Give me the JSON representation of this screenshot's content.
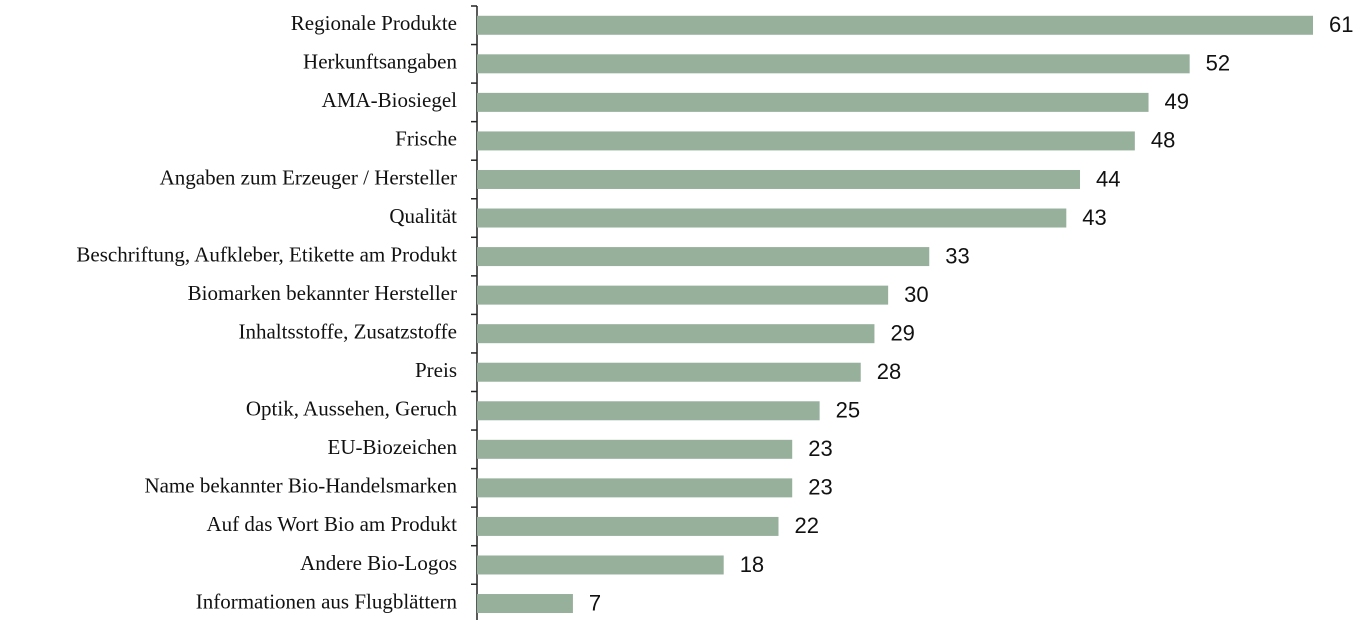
{
  "chart_data": {
    "type": "barh",
    "categories": [
      "Regionale Produkte",
      "Herkunftsangaben",
      "AMA-Biosiegel",
      "Frische",
      "Angaben zum Erzeuger / Hersteller",
      "Qualität",
      "Beschriftung, Aufkleber, Etikette am Produkt",
      "Biomarken bekannter Hersteller",
      "Inhaltsstoffe, Zusatzstoffe",
      "Preis",
      "Optik, Aussehen, Geruch",
      "EU-Biozeichen",
      "Name bekannter Bio-Handelsmarken",
      "Auf das Wort Bio am Produkt",
      "Andere Bio-Logos",
      "Informationen aus Flugblättern"
    ],
    "values": [
      61,
      52,
      49,
      48,
      44,
      43,
      33,
      30,
      29,
      28,
      25,
      23,
      23,
      22,
      18,
      7
    ],
    "color": "#97b09c"
  }
}
